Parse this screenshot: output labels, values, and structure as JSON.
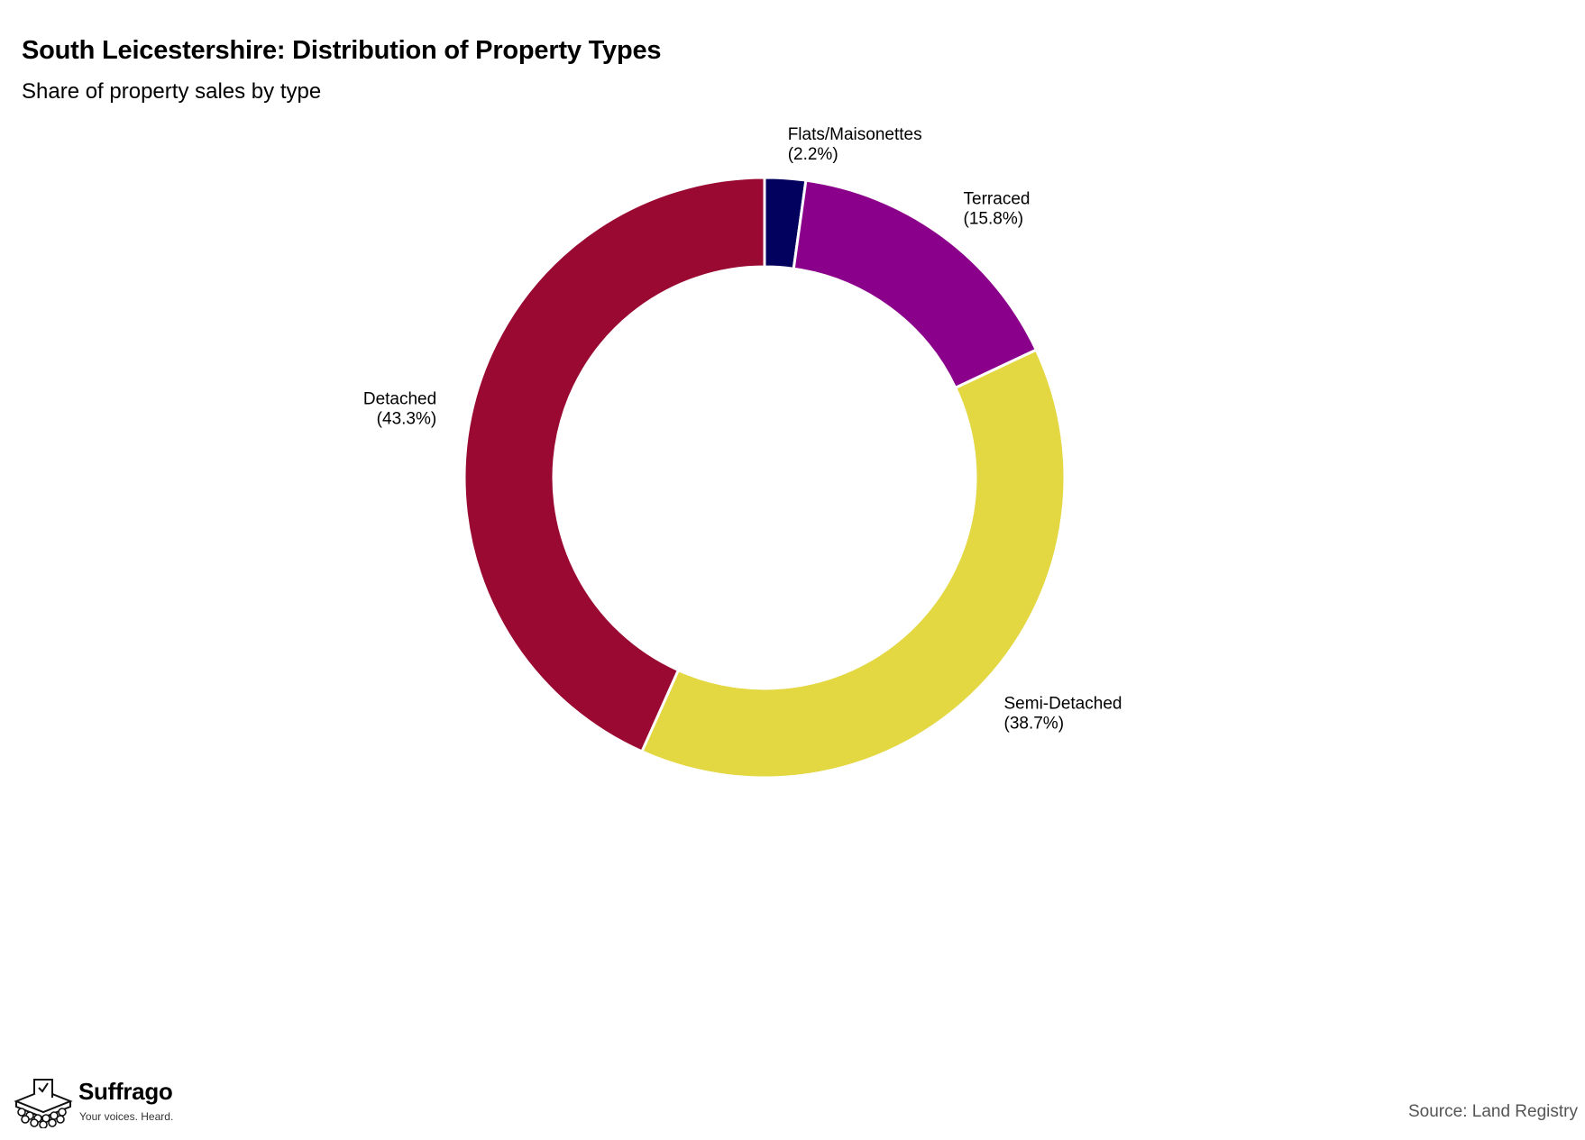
{
  "chart_data": {
    "type": "pie",
    "style": "donut",
    "title": "South Leicestershire: Distribution of Property Types",
    "subtitle": "Share of property sales by type",
    "categories": [
      "Flats/Maisonettes",
      "Terraced",
      "Semi-Detached",
      "Detached"
    ],
    "values": [
      2.2,
      15.8,
      38.7,
      43.3
    ],
    "value_labels": [
      "(2.2%)",
      "(15.8%)",
      "(38.7%)",
      "(43.3%)"
    ],
    "unit": "%",
    "colors": [
      "#02025e",
      "#8b008b",
      "#e3d742",
      "#9a0932"
    ],
    "start_angle": "12 o'clock",
    "direction": "clockwise",
    "legend": "none",
    "grid": false
  },
  "branding": {
    "name": "Suffrago",
    "tagline": "Your voices. Heard.",
    "logo_icon": "ballot-box-crowd-icon"
  },
  "source": "Source: Land Registry"
}
